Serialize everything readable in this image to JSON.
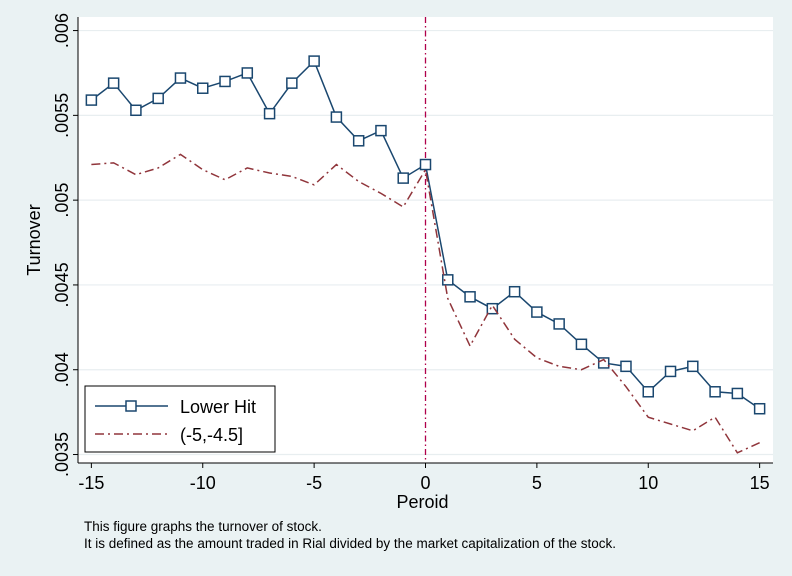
{
  "chart_data": {
    "type": "line",
    "xlabel": "Peroid",
    "ylabel": "Turnover",
    "xlim": [
      -15.6,
      15.6
    ],
    "ylim": [
      0.00345,
      0.00608
    ],
    "xticks": [
      -15,
      -10,
      -5,
      0,
      5,
      10,
      15
    ],
    "xtick_labels": [
      "-15",
      "-10",
      "-5",
      "0",
      "5",
      "10",
      "15"
    ],
    "yticks": [
      0.0035,
      0.004,
      0.0045,
      0.005,
      0.0055,
      0.006
    ],
    "ytick_labels": [
      ".0035",
      ".004",
      ".0045",
      ".005",
      ".0055",
      ".006"
    ],
    "grid": true,
    "reference_line": {
      "x": 0,
      "color": "#b0004a",
      "style": "dash-dot"
    },
    "x": [
      -15,
      -14,
      -13,
      -12,
      -11,
      -10,
      -9,
      -8,
      -7,
      -6,
      -5,
      -4,
      -3,
      -2,
      -1,
      0,
      1,
      2,
      3,
      4,
      5,
      6,
      7,
      8,
      9,
      10,
      11,
      12,
      13,
      14,
      15
    ],
    "series": [
      {
        "name": "Lower Hit",
        "color": "#1a476f",
        "marker": "hollow-square",
        "line_style": "solid",
        "values": [
          0.00559,
          0.00569,
          0.00553,
          0.0056,
          0.00572,
          0.00566,
          0.0057,
          0.00575,
          0.00551,
          0.00569,
          0.00582,
          0.00549,
          0.00535,
          0.00541,
          0.00513,
          0.00521,
          0.00453,
          0.00443,
          0.00436,
          0.00446,
          0.00434,
          0.00427,
          0.00415,
          0.00404,
          0.00402,
          0.00387,
          0.00399,
          0.00402,
          0.00387,
          0.00386,
          0.00377
        ]
      },
      {
        "name": "(-5,-4.5]",
        "color": "#90353b",
        "marker": "none",
        "line_style": "dash-dot",
        "values": [
          0.00521,
          0.00522,
          0.00515,
          0.00519,
          0.00527,
          0.00518,
          0.00512,
          0.00519,
          0.00516,
          0.00514,
          0.00509,
          0.00521,
          0.00511,
          0.00504,
          0.00496,
          0.00518,
          0.00442,
          0.00414,
          0.00438,
          0.00418,
          0.00407,
          0.00402,
          0.004,
          0.00406,
          0.0039,
          0.00372,
          0.00368,
          0.00364,
          0.00372,
          0.00351,
          0.00357
        ]
      }
    ],
    "legend": {
      "position": "bottom-left",
      "entries": [
        "Lower Hit",
        "(-5,-4.5]"
      ]
    }
  },
  "notes": [
    "This figure graphs the turnover of stock.",
    "It is defined as the amount traded in Rial divided by the market capitalization of the stock."
  ]
}
